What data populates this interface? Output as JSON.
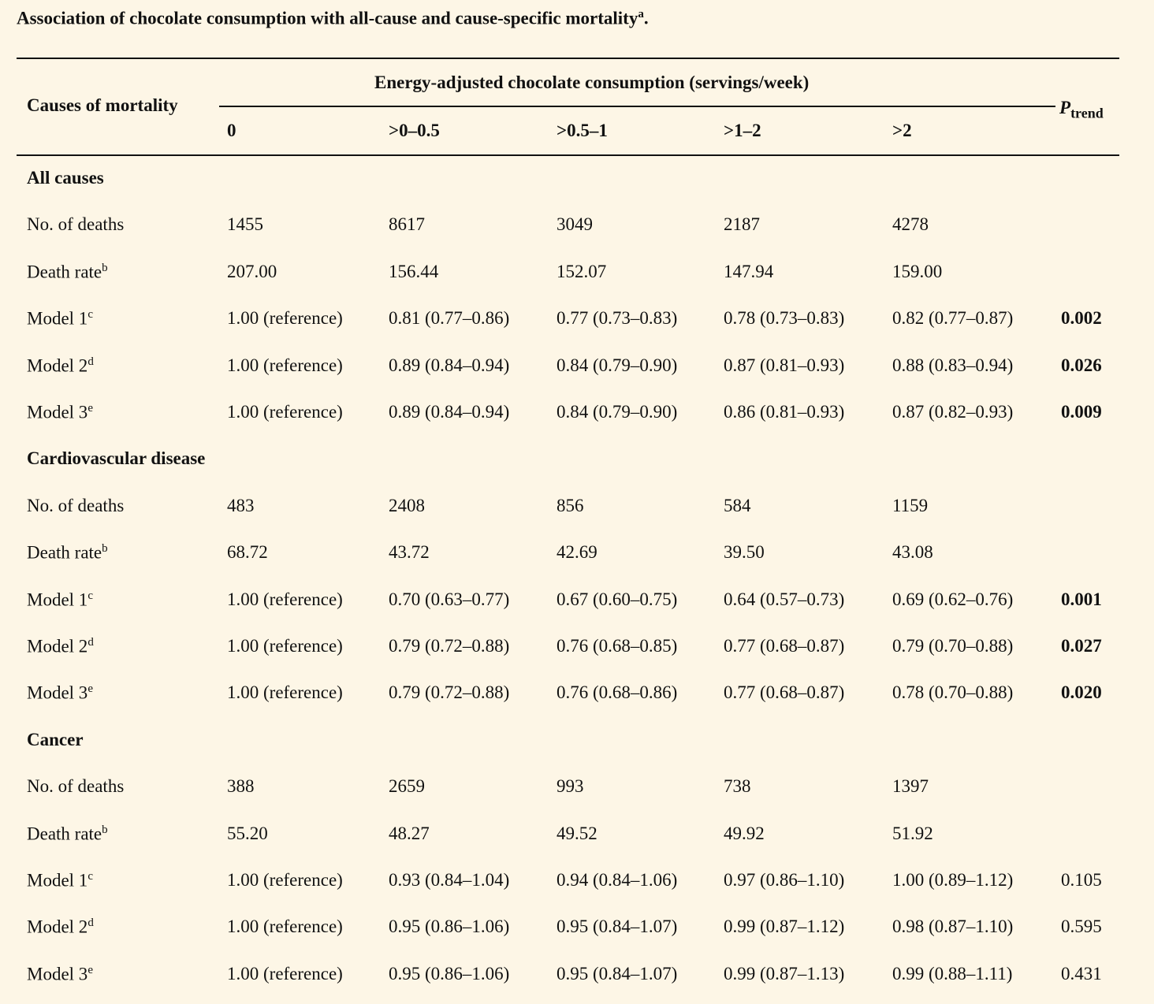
{
  "caption": {
    "text": "Association of chocolate consumption with all-cause and cause-specific mortality",
    "sup": "a",
    "end": "."
  },
  "header": {
    "row_label": "Causes of mortality",
    "group_label": "Energy-adjusted chocolate consumption (servings/week)",
    "columns": [
      "0",
      ">0–0.5",
      ">0.5–1",
      ">1–2",
      ">2"
    ],
    "ptrend_main": "P",
    "ptrend_sub": "trend"
  },
  "sections": [
    {
      "title": "All causes",
      "rows": [
        {
          "label": "No. of deaths",
          "sup": "",
          "values": [
            "1455",
            "8617",
            "3049",
            "2187",
            "4278"
          ],
          "ptrend": "",
          "ptrend_bold": false
        },
        {
          "label": "Death rate",
          "sup": "b",
          "values": [
            "207.00",
            "156.44",
            "152.07",
            "147.94",
            "159.00"
          ],
          "ptrend": "",
          "ptrend_bold": false
        },
        {
          "label": "Model 1",
          "sup": "c",
          "values": [
            "1.00 (reference)",
            "0.81 (0.77–0.86)",
            "0.77 (0.73–0.83)",
            "0.78 (0.73–0.83)",
            "0.82 (0.77–0.87)"
          ],
          "ptrend": "0.002",
          "ptrend_bold": true
        },
        {
          "label": "Model 2",
          "sup": "d",
          "values": [
            "1.00 (reference)",
            "0.89 (0.84–0.94)",
            "0.84 (0.79–0.90)",
            "0.87 (0.81–0.93)",
            "0.88 (0.83–0.94)"
          ],
          "ptrend": "0.026",
          "ptrend_bold": true
        },
        {
          "label": "Model 3",
          "sup": "e",
          "values": [
            "1.00 (reference)",
            "0.89 (0.84–0.94)",
            "0.84 (0.79–0.90)",
            "0.86 (0.81–0.93)",
            "0.87 (0.82–0.93)"
          ],
          "ptrend": "0.009",
          "ptrend_bold": true
        }
      ]
    },
    {
      "title": "Cardiovascular disease",
      "rows": [
        {
          "label": "No. of deaths",
          "sup": "",
          "values": [
            "483",
            "2408",
            "856",
            "584",
            "1159"
          ],
          "ptrend": "",
          "ptrend_bold": false
        },
        {
          "label": "Death rate",
          "sup": "b",
          "values": [
            "68.72",
            "43.72",
            "42.69",
            "39.50",
            "43.08"
          ],
          "ptrend": "",
          "ptrend_bold": false
        },
        {
          "label": "Model 1",
          "sup": "c",
          "values": [
            "1.00 (reference)",
            "0.70 (0.63–0.77)",
            "0.67 (0.60–0.75)",
            "0.64 (0.57–0.73)",
            "0.69 (0.62–0.76)"
          ],
          "ptrend": "0.001",
          "ptrend_bold": true
        },
        {
          "label": "Model 2",
          "sup": "d",
          "values": [
            "1.00 (reference)",
            "0.79 (0.72–0.88)",
            "0.76 (0.68–0.85)",
            "0.77 (0.68–0.87)",
            "0.79 (0.70–0.88)"
          ],
          "ptrend": "0.027",
          "ptrend_bold": true
        },
        {
          "label": "Model 3",
          "sup": "e",
          "values": [
            "1.00 (reference)",
            "0.79 (0.72–0.88)",
            "0.76 (0.68–0.86)",
            "0.77 (0.68–0.87)",
            "0.78 (0.70–0.88)"
          ],
          "ptrend": "0.020",
          "ptrend_bold": true
        }
      ]
    },
    {
      "title": "Cancer",
      "rows": [
        {
          "label": "No. of deaths",
          "sup": "",
          "values": [
            "388",
            "2659",
            "993",
            "738",
            "1397"
          ],
          "ptrend": "",
          "ptrend_bold": false
        },
        {
          "label": "Death rate",
          "sup": "b",
          "values": [
            "55.20",
            "48.27",
            "49.52",
            "49.92",
            "51.92"
          ],
          "ptrend": "",
          "ptrend_bold": false
        },
        {
          "label": "Model 1",
          "sup": "c",
          "values": [
            "1.00 (reference)",
            "0.93 (0.84–1.04)",
            "0.94 (0.84–1.06)",
            "0.97 (0.86–1.10)",
            "1.00 (0.89–1.12)"
          ],
          "ptrend": "0.105",
          "ptrend_bold": false
        },
        {
          "label": "Model 2",
          "sup": "d",
          "values": [
            "1.00 (reference)",
            "0.95 (0.86–1.06)",
            "0.95 (0.84–1.07)",
            "0.99 (0.87–1.12)",
            "0.98 (0.87–1.10)"
          ],
          "ptrend": "0.595",
          "ptrend_bold": false
        },
        {
          "label": "Model 3",
          "sup": "e",
          "values": [
            "1.00 (reference)",
            "0.95 (0.86–1.06)",
            "0.95 (0.84–1.07)",
            "0.99 (0.87–1.13)",
            "0.99 (0.88–1.11)"
          ],
          "ptrend": "0.431",
          "ptrend_bold": false
        }
      ]
    }
  ]
}
